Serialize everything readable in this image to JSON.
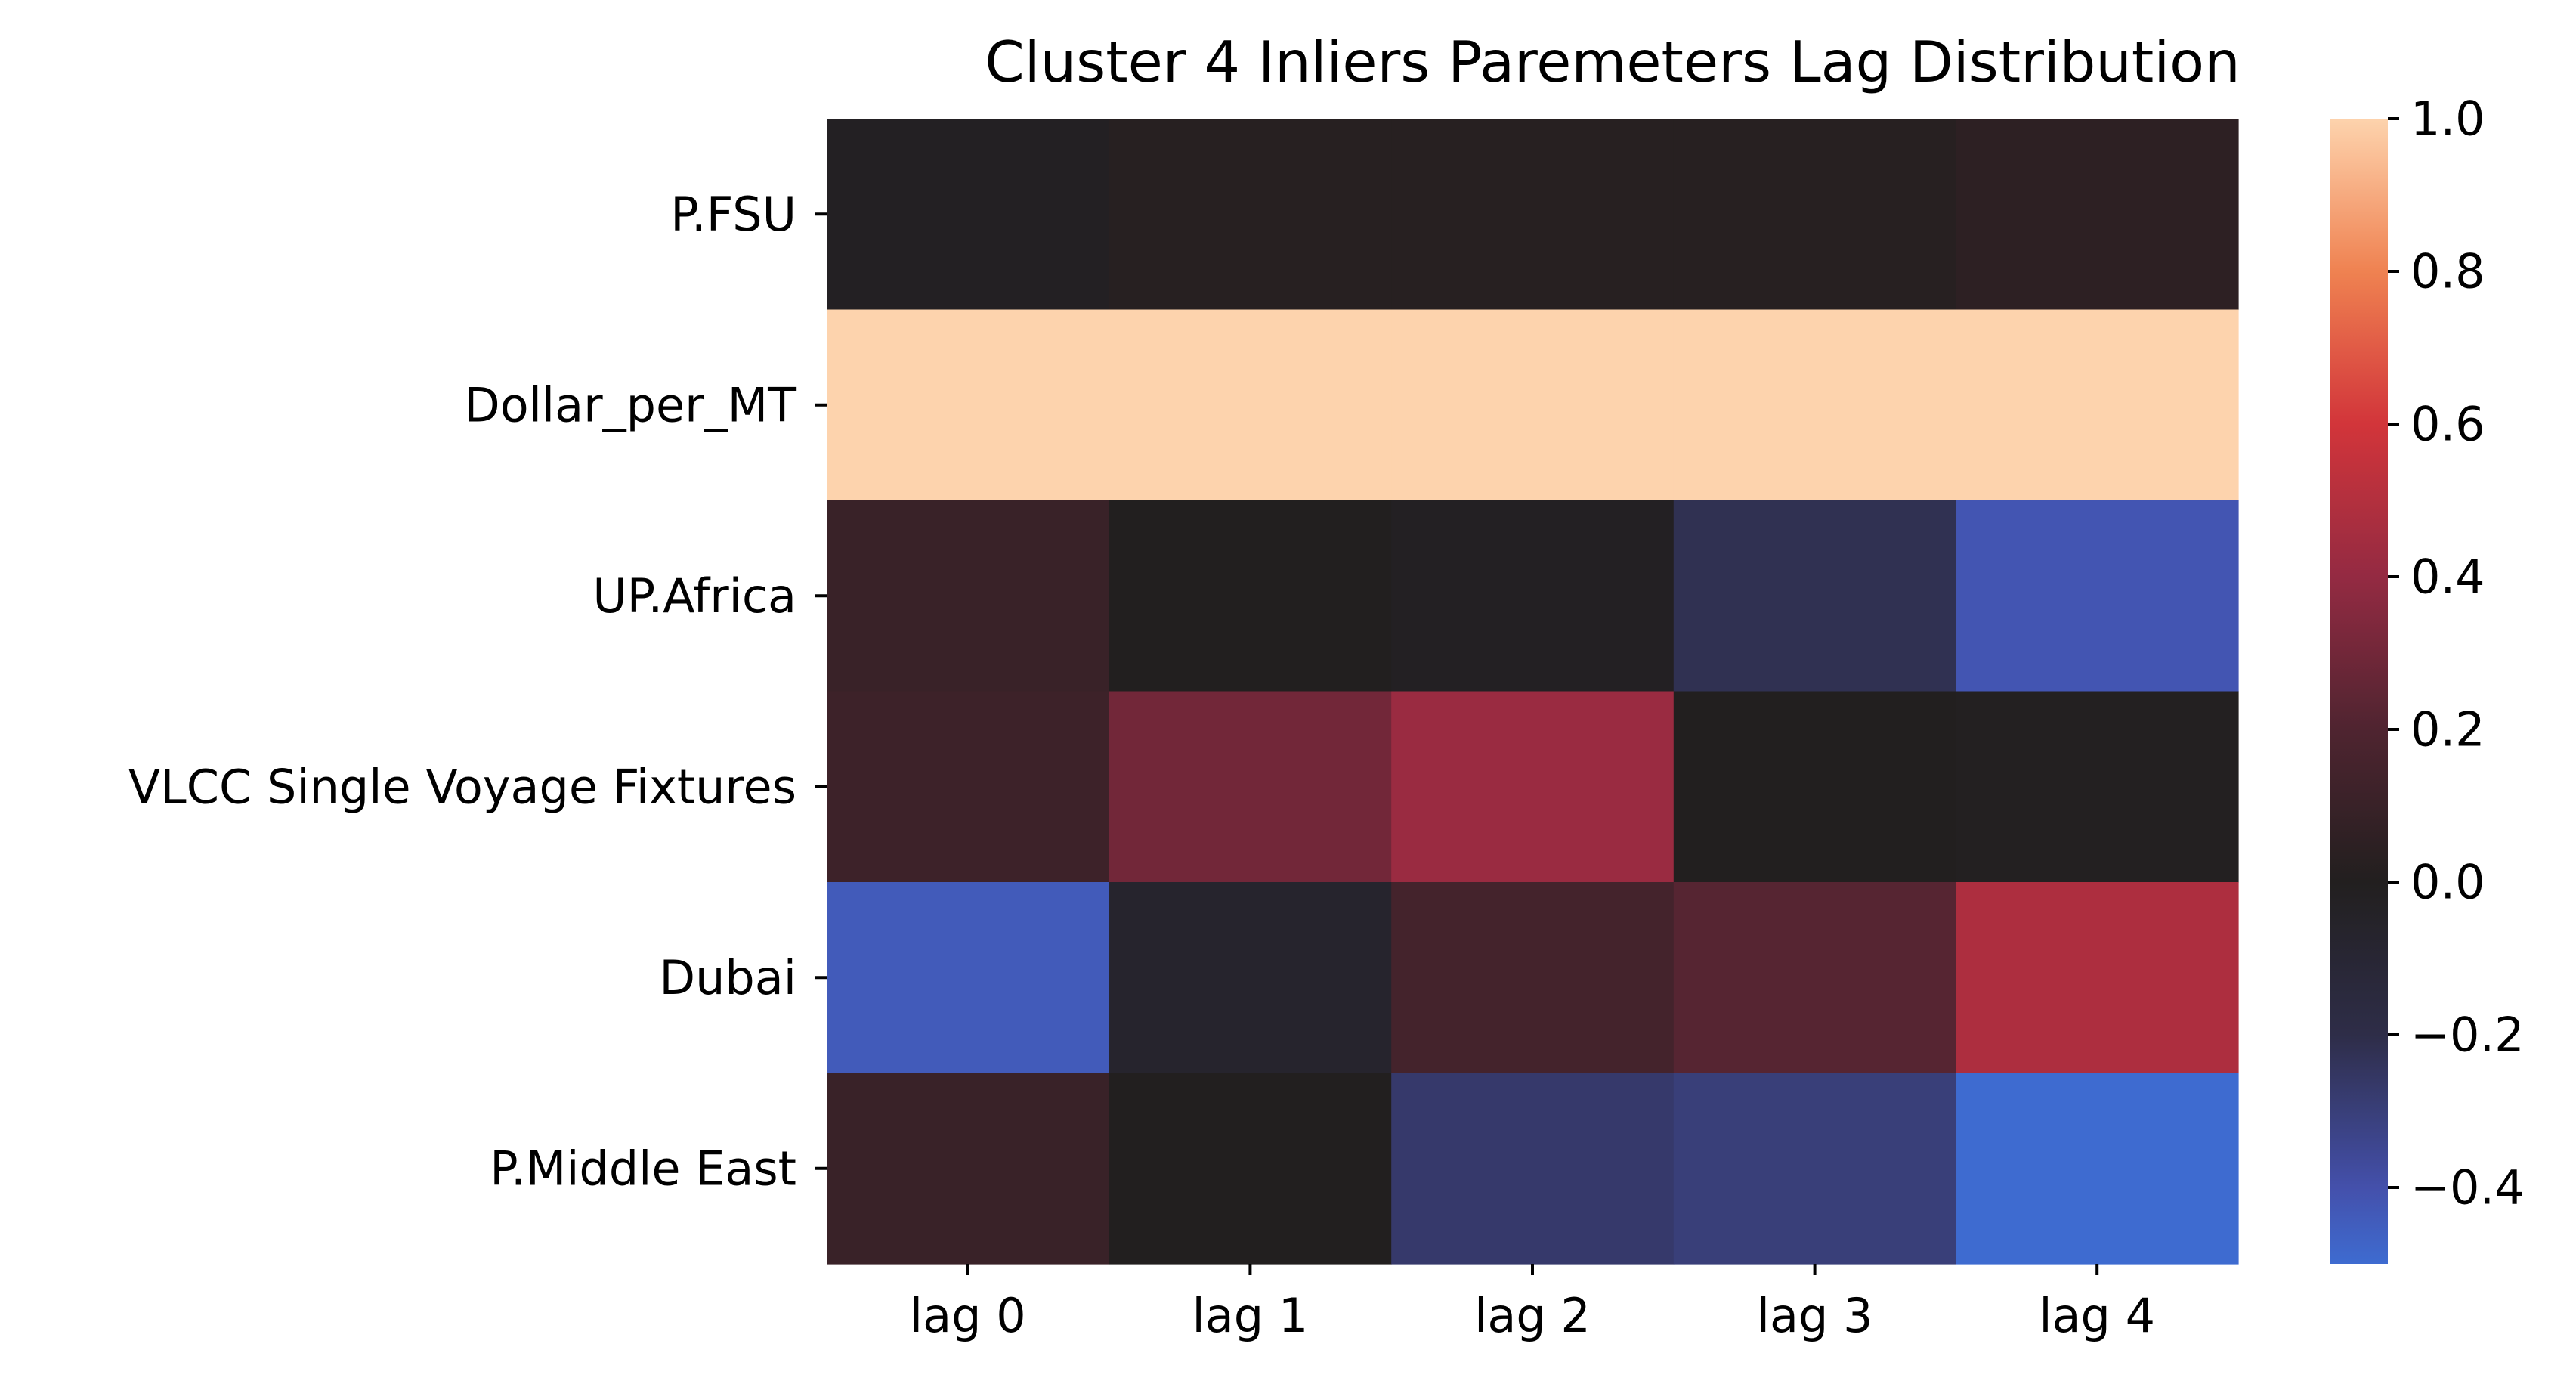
{
  "chart_data": {
    "type": "heatmap",
    "title": "Cluster 4 Inliers Paremeters Lag Distribution",
    "xlabel": "",
    "ylabel": "",
    "x_categories": [
      "lag 0",
      "lag 1",
      "lag 2",
      "lag 3",
      "lag 4"
    ],
    "y_categories": [
      "P.FSU",
      "Dollar_per_MT",
      "UP.Africa",
      "VLCC Single Voyage Fixtures",
      "Dubai",
      "P.Middle East"
    ],
    "values": [
      [
        -0.02,
        0.02,
        0.02,
        0.02,
        0.05
      ],
      [
        1.0,
        1.0,
        1.0,
        1.0,
        1.0
      ],
      [
        0.1,
        0.0,
        -0.02,
        -0.22,
        -0.42
      ],
      [
        0.12,
        0.3,
        0.42,
        0.0,
        -0.01
      ],
      [
        -0.44,
        -0.07,
        0.15,
        0.22,
        0.48
      ],
      [
        0.1,
        0.0,
        -0.27,
        -0.3,
        -0.5
      ]
    ],
    "colorbar": {
      "vmin": -0.5,
      "vmax": 1.0,
      "center": 0.0,
      "ticks": [
        1.0,
        0.8,
        0.6,
        0.4,
        0.2,
        0.0,
        -0.2,
        -0.4
      ],
      "tick_labels": [
        "1.0",
        "0.8",
        "0.6",
        "0.4",
        "0.2",
        "0.0",
        "−0.2",
        "−0.4"
      ]
    },
    "colormap_stops": [
      {
        "v": -0.5,
        "color": "#3e6bd0"
      },
      {
        "v": -0.4,
        "color": "#4450ab"
      },
      {
        "v": -0.2,
        "color": "#2e2d48"
      },
      {
        "v": 0.0,
        "color": "#221f1f"
      },
      {
        "v": 0.2,
        "color": "#4f2430"
      },
      {
        "v": 0.4,
        "color": "#942a42"
      },
      {
        "v": 0.6,
        "color": "#d2353a"
      },
      {
        "v": 0.8,
        "color": "#ef8251"
      },
      {
        "v": 1.0,
        "color": "#fdd3ad"
      }
    ],
    "grid": false,
    "legend": "colorbar-right"
  }
}
